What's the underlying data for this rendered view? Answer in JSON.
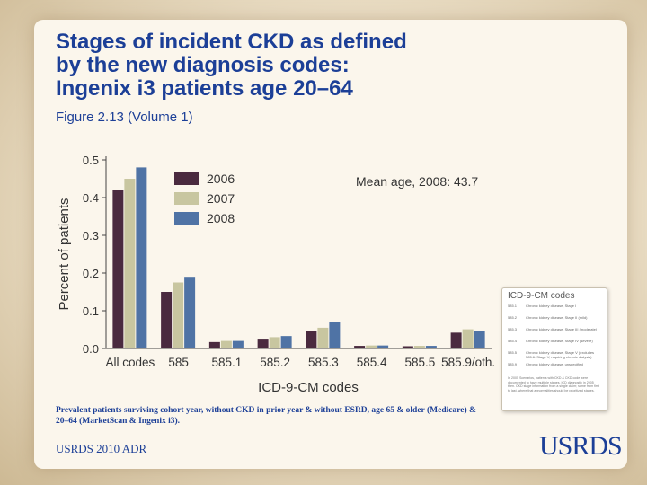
{
  "slide": {
    "title_lines": [
      "Stages of incident CKD as defined",
      "by the new diagnosis codes:",
      "Ingenix i3 patients age 20–64"
    ],
    "subtitle": "Figure 2.13 (Volume 1)",
    "footnote": "Prevalent patients surviving cohort year, without CKD in prior year & without ESRD, age 65 & older (Medicare) & 20–64 (MarketScan & Ingenix i3).",
    "source": "USRDS 2010 ADR",
    "logo": "USRDS"
  },
  "code_panel": {
    "title": "ICD-9-CM codes",
    "rows": [
      {
        "code": "585.1",
        "desc": "Chronic kidney disease, Stage I"
      },
      {
        "code": "585.2",
        "desc": "Chronic kidney disease, Stage II (mild)"
      },
      {
        "code": "585.3",
        "desc": "Chronic kidney disease, Stage III (moderate)"
      },
      {
        "code": "585.4",
        "desc": "Chronic kidney disease, Stage IV (severe)"
      },
      {
        "code": "585.5",
        "desc": "Chronic kidney disease, Stage V (excludes 585.6: Stage V, requiring chronic dialysis)"
      },
      {
        "code": "585.9",
        "desc": "Chronic kidney disease, unspecified"
      }
    ],
    "note": "In 2005 Scenarios, patients with CKD & CKD code were documented to have multiple stages, ICD diagnostic in 2005 then. CKD stage information from a single claim; some from first to last, where that abnormalities should be prioritized stages."
  },
  "chart_data": {
    "type": "bar",
    "categories": [
      "All codes",
      "585",
      "585.1",
      "585.2",
      "585.3",
      "585.4",
      "585.5",
      "585.9/oth."
    ],
    "series": [
      {
        "name": "2006",
        "color": "#4a2a3f",
        "values": [
          0.42,
          0.15,
          0.017,
          0.026,
          0.046,
          0.007,
          0.006,
          0.042
        ]
      },
      {
        "name": "2007",
        "color": "#c8c6a0",
        "values": [
          0.45,
          0.175,
          0.02,
          0.03,
          0.055,
          0.008,
          0.007,
          0.051
        ]
      },
      {
        "name": "2008",
        "color": "#4f73a5",
        "values": [
          0.48,
          0.19,
          0.02,
          0.033,
          0.07,
          0.008,
          0.007,
          0.047
        ]
      }
    ],
    "xlabel": "ICD-9-CM codes",
    "ylabel": "Percent of patients",
    "ylim": [
      0,
      0.5
    ],
    "yticks": [
      "0.0",
      "0.1",
      "0.2",
      "0.3",
      "0.4",
      "0.5"
    ],
    "annotation": "Mean age, 2008: 43.7",
    "legend_position": "top-right"
  }
}
